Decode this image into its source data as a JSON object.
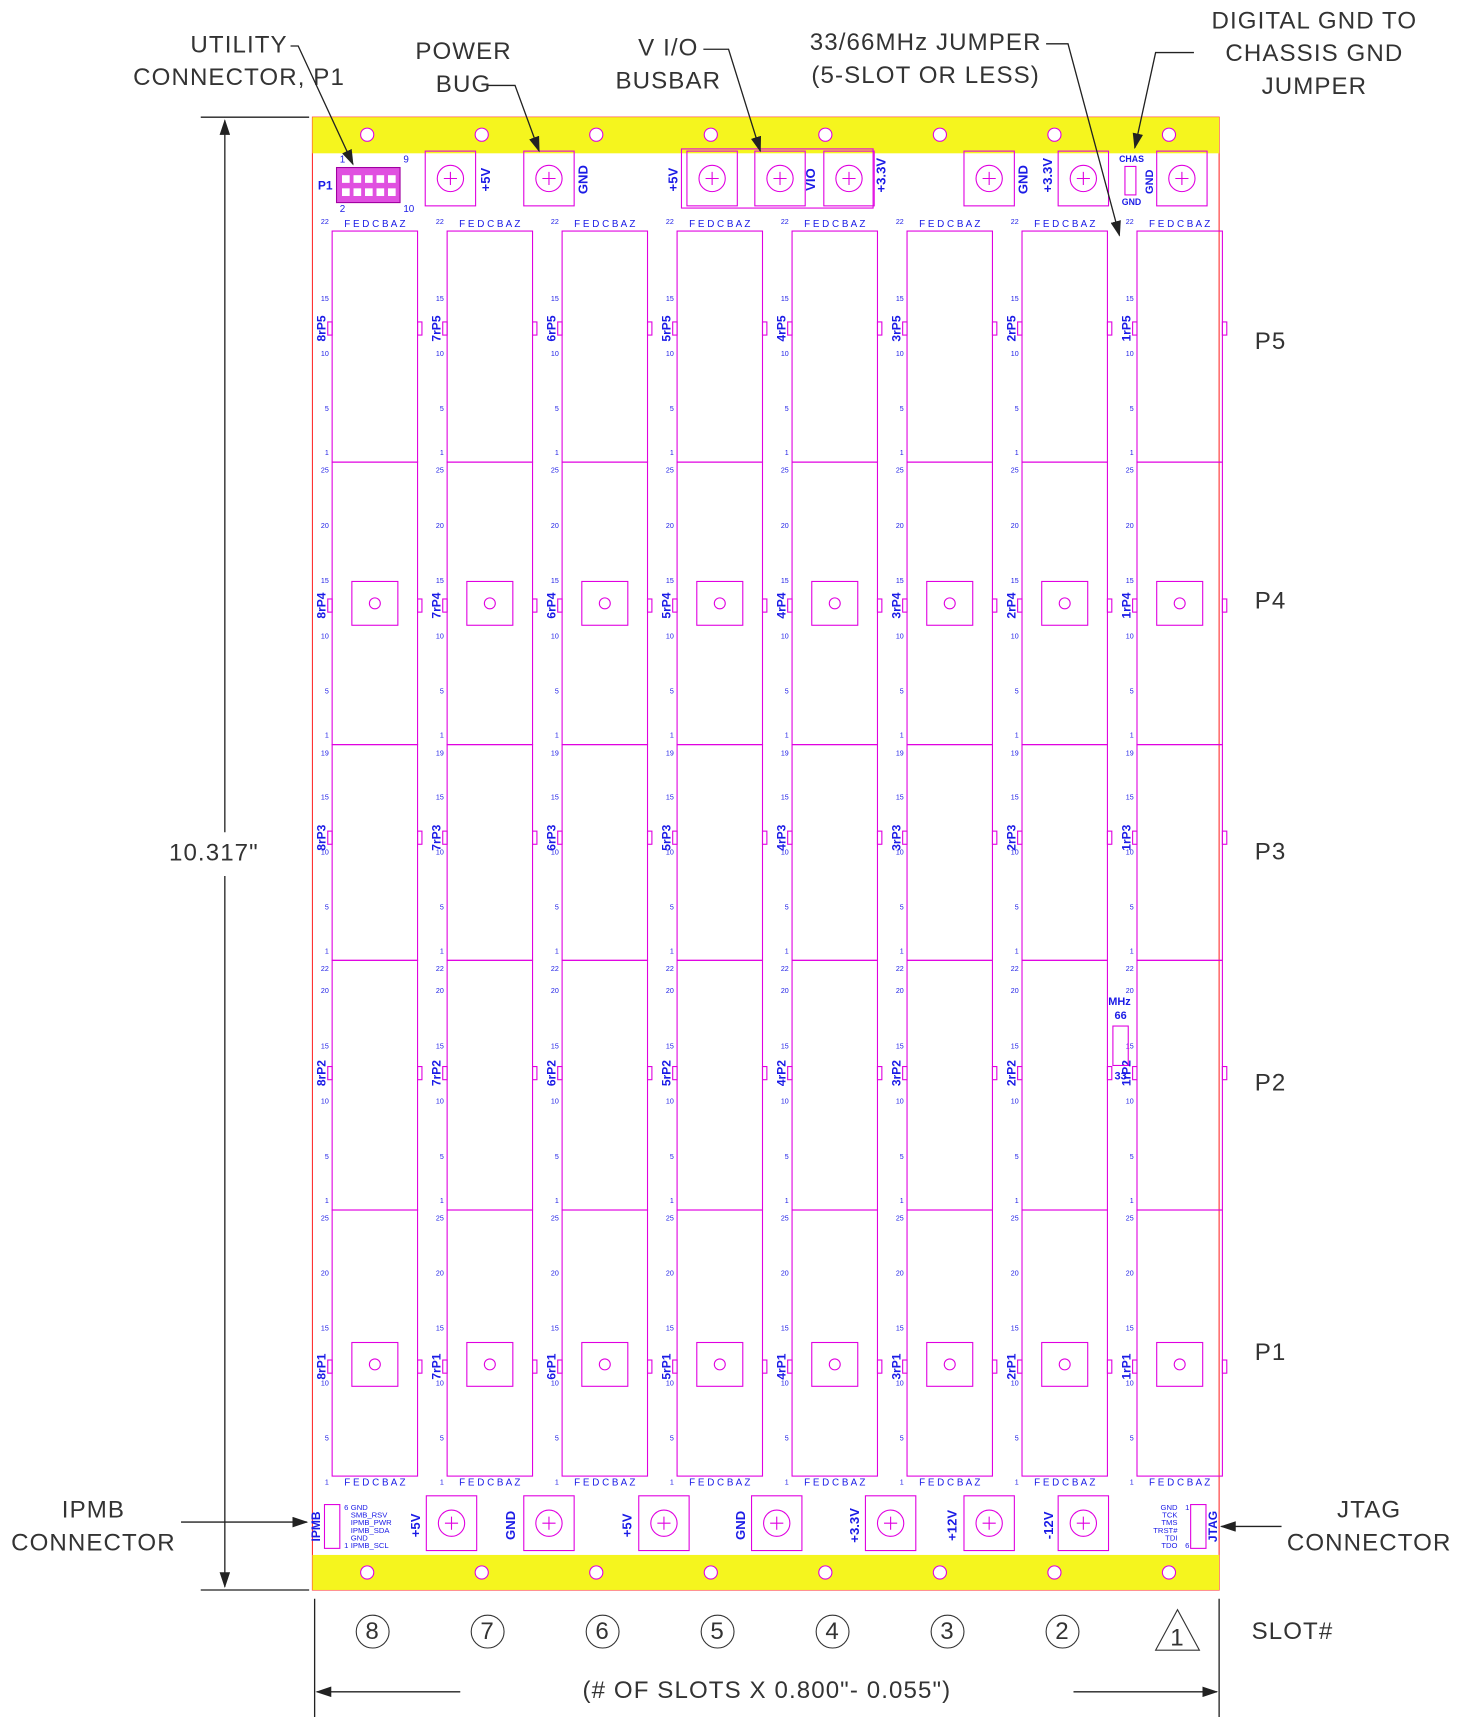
{
  "callouts": [
    {
      "lines": [
        "UTILITY",
        "CONNECTOR, P1"
      ]
    },
    {
      "lines": [
        "POWER",
        "BUG"
      ]
    },
    {
      "lines": [
        "V I/O",
        "BUSBAR"
      ]
    },
    {
      "lines": [
        "33/66MHz JUMPER",
        "(5-SLOT OR LESS)"
      ]
    },
    {
      "lines": [
        "DIGITAL GND TO",
        "CHASSIS GND",
        "JUMPER"
      ]
    },
    {
      "lines": [
        "IPMB",
        "CONNECTOR"
      ]
    },
    {
      "lines": [
        "JTAG",
        "CONNECTOR"
      ]
    }
  ],
  "dimension_height": "10.317\"",
  "dimension_width": "(# OF SLOTS X 0.800\"- 0.055\")",
  "slot_header": "SLOT#",
  "column_header": "F E D C B A Z",
  "connectors": [
    {
      "name": "P5",
      "rows": [
        22,
        15,
        10,
        5,
        1
      ]
    },
    {
      "name": "P4",
      "rows": [
        25,
        20,
        15,
        10,
        5,
        1
      ]
    },
    {
      "name": "P3",
      "rows": [
        19,
        15,
        10,
        5,
        1
      ]
    },
    {
      "name": "P2",
      "rows": [
        22,
        20,
        15,
        10,
        5,
        1
      ]
    },
    {
      "name": "P1",
      "rows": [
        25,
        20,
        15,
        10,
        5,
        1
      ]
    }
  ],
  "slots": [
    {
      "number": "8",
      "labels": [
        "8rP5",
        "8rP4",
        "8rP3",
        "8rP2",
        "8rP1"
      ]
    },
    {
      "number": "7",
      "labels": [
        "7rP5",
        "7rP4",
        "7rP3",
        "7rP2",
        "7rP1"
      ]
    },
    {
      "number": "6",
      "labels": [
        "6rP5",
        "6rP4",
        "6rP3",
        "6rP2",
        "6rP1"
      ]
    },
    {
      "number": "5",
      "labels": [
        "5rP5",
        "5rP4",
        "5rP3",
        "5rP2",
        "5rP1"
      ]
    },
    {
      "number": "4",
      "labels": [
        "4rP5",
        "4rP4",
        "4rP3",
        "4rP2",
        "4rP1"
      ]
    },
    {
      "number": "3",
      "labels": [
        "3rP5",
        "3rP4",
        "3rP3",
        "3rP2",
        "3rP1"
      ]
    },
    {
      "number": "2",
      "labels": [
        "2rP5",
        "2rP4",
        "2rP3",
        "2rP2",
        "2rP1"
      ]
    },
    {
      "number": "1",
      "labels": [
        "1rP5",
        "1rP4",
        "1rP3",
        "1rP2",
        "1rP1"
      ]
    }
  ],
  "top_power_labels": [
    "+5V",
    "GND",
    "+5V",
    "VIO",
    "+3.3V",
    "GND",
    "+3.3V"
  ],
  "bottom_power_labels": [
    "+5V",
    "GND",
    "+5V",
    "GND",
    "+3.3V",
    "+12V",
    "-12V"
  ],
  "utility_header": {
    "name": "P1",
    "pins": [
      "1",
      "9",
      "2",
      "10"
    ]
  },
  "chassis_jumper": [
    "CHAS",
    "GND",
    "GND"
  ],
  "mhz_jumper": [
    "MHz",
    "66",
    "33"
  ],
  "ipmb": {
    "name": "IPMB",
    "signals": [
      "GND",
      "SMB_RSV",
      "IPMB_PWR",
      "IPMB_SDA",
      "GND",
      "IPMB_SCL"
    ],
    "pins": [
      "6",
      "1"
    ]
  },
  "jtag": {
    "name": "JTAG",
    "signals": [
      "GND",
      "TCK",
      "TMS",
      "TRST#",
      "TDI",
      "TDO"
    ],
    "pins": [
      "1",
      "6"
    ]
  }
}
